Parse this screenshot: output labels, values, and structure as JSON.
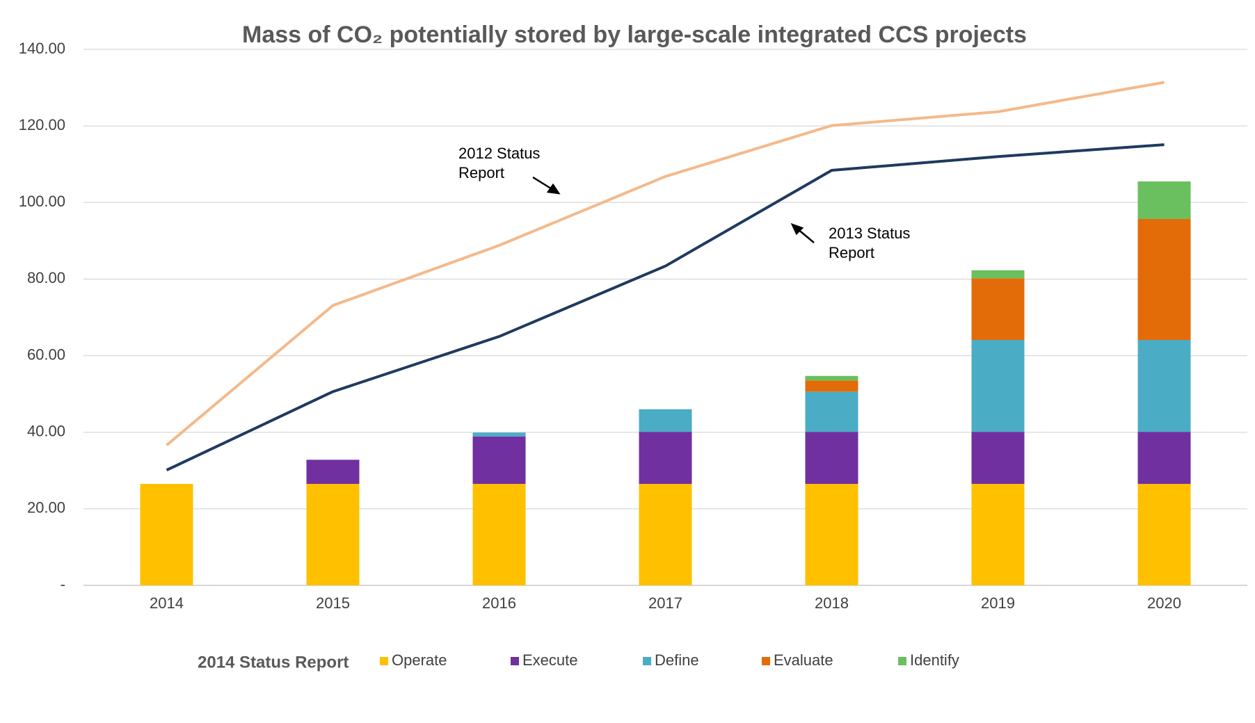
{
  "chart_data": {
    "type": "bar",
    "stacked": true,
    "title": "Mass of CO₂ potentially stored by large-scale integrated CCS projects",
    "categories": [
      "2014",
      "2015",
      "2016",
      "2017",
      "2018",
      "2019",
      "2020"
    ],
    "legend_title": "2014 Status Report",
    "legend": "bottom",
    "grid": true,
    "ylim": [
      0,
      140
    ],
    "yticks": [
      {
        "value": 0,
        "label": "-"
      },
      {
        "value": 20,
        "label": "20.00"
      },
      {
        "value": 40,
        "label": "40.00"
      },
      {
        "value": 60,
        "label": "60.00"
      },
      {
        "value": 80,
        "label": "80.00"
      },
      {
        "value": 100,
        "label": "100.00"
      },
      {
        "value": 120,
        "label": "120.00"
      },
      {
        "value": 140,
        "label": "140.00"
      }
    ],
    "series": [
      {
        "name": "Operate",
        "type": "bar",
        "color": "#ffc000",
        "values": [
          26.5,
          26.5,
          26.5,
          26.5,
          26.5,
          26.5,
          26.5
        ]
      },
      {
        "name": "Execute",
        "type": "bar",
        "color": "#7030a0",
        "values": [
          0,
          6.3,
          12.4,
          13.6,
          13.6,
          13.6,
          13.6
        ]
      },
      {
        "name": "Define",
        "type": "bar",
        "color": "#4bacc6",
        "values": [
          0,
          0,
          1.0,
          5.9,
          10.5,
          24,
          24
        ]
      },
      {
        "name": "Evaluate",
        "type": "bar",
        "color": "#e36c09",
        "values": [
          0,
          0,
          0,
          0,
          2.9,
          16.1,
          31.6
        ]
      },
      {
        "name": "Identify",
        "type": "bar",
        "color": "#6abf5e",
        "values": [
          0,
          0,
          0,
          0,
          1.2,
          2.1,
          9.8
        ]
      },
      {
        "name": "2012 Status Report",
        "type": "line",
        "color": "#f4b98a",
        "values": [
          36.6,
          73.1,
          88.8,
          106.8,
          120.1,
          123.7,
          131.4
        ]
      },
      {
        "name": "2013 Status Report",
        "type": "line",
        "color": "#1f3a5f",
        "values": [
          30.1,
          50.6,
          65,
          83.4,
          108.4,
          112,
          115.1
        ]
      }
    ]
  }
}
